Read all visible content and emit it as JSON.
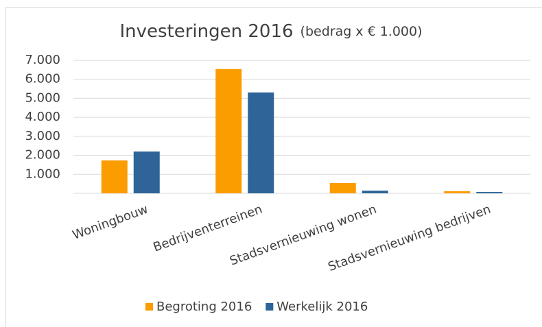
{
  "chart_data": {
    "type": "bar",
    "title": "Investeringen 2016",
    "title_note": "(bedrag x € 1.000)",
    "categories": [
      "Woningbouw",
      "Bedrijventerreinen",
      "Stadsvernieuwing wonen",
      "Stadsvernieuwing bedrijven"
    ],
    "series": [
      {
        "name": "Begroting 2016",
        "color": "#fb9c00",
        "values": [
          1730,
          6540,
          540,
          110
        ]
      },
      {
        "name": "Werkelijk 2016",
        "color": "#2e6497",
        "values": [
          2200,
          5310,
          140,
          70
        ]
      }
    ],
    "ylim": [
      0,
      7000
    ],
    "yticks": [
      {
        "value": 1000,
        "label": "1.000"
      },
      {
        "value": 2000,
        "label": "2.000"
      },
      {
        "value": 3000,
        "label": "3.000"
      },
      {
        "value": 4000,
        "label": "4.000"
      },
      {
        "value": 5000,
        "label": "5.000"
      },
      {
        "value": 6000,
        "label": "6.000"
      },
      {
        "value": 7000,
        "label": "7.000"
      }
    ],
    "grid": true,
    "legend": "bottom"
  }
}
